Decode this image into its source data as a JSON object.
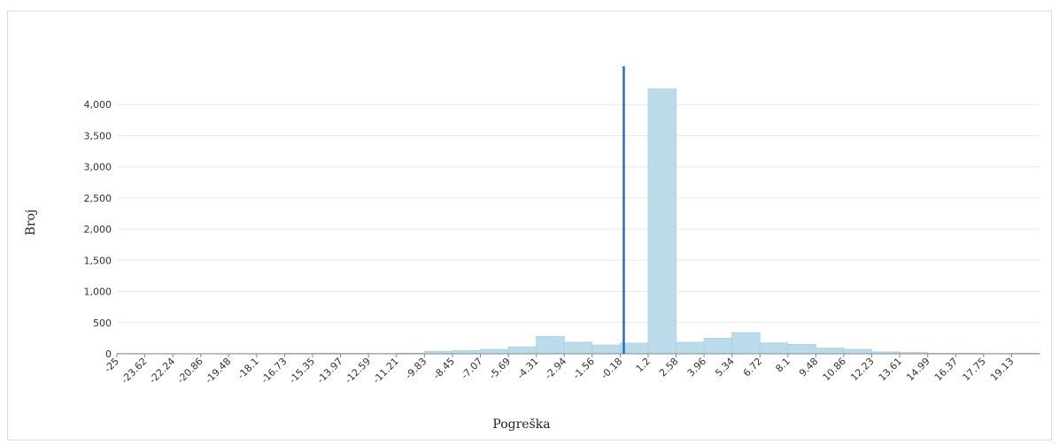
{
  "chart_data": {
    "type": "bar",
    "xlabel": "Pogreška",
    "ylabel": "Broj",
    "ylim": [
      0,
      4500
    ],
    "grid": true,
    "y_ticks": [
      0,
      500,
      1000,
      1500,
      2000,
      2500,
      3000,
      3500,
      4000
    ],
    "y_tick_labels": [
      "0",
      "500",
      "1,000",
      "1,500",
      "2,000",
      "2,500",
      "3,000",
      "3,500",
      "4,000"
    ],
    "x_tick_labels": [
      "-25",
      "-23.62",
      "-22.24",
      "-20.86",
      "-19.48",
      "-18.1",
      "-16.73",
      "-15.35",
      "-13.97",
      "-12.59",
      "-11.21",
      "-9.83",
      "-8.45",
      "-7.07",
      "-5.69",
      "-4.31",
      "-2.94",
      "-1.56",
      "-0.18",
      "1.2",
      "2.58",
      "3.96",
      "5.34",
      "6.72",
      "8.1",
      "9.48",
      "10.86",
      "12.23",
      "13.61",
      "14.99",
      "16.37",
      "17.75",
      "19.13"
    ],
    "bin_edges": [
      -25,
      -23.62,
      -22.24,
      -20.86,
      -19.48,
      -18.1,
      -16.73,
      -15.35,
      -13.97,
      -12.59,
      -11.21,
      -9.83,
      -8.45,
      -7.07,
      -5.69,
      -4.31,
      -2.94,
      -1.56,
      -0.18,
      1.2,
      2.58,
      3.96,
      5.34,
      6.72,
      8.1,
      9.48,
      10.86,
      12.23,
      13.61,
      14.99,
      16.37,
      17.75,
      19.13,
      20.51
    ],
    "values": [
      5,
      3,
      2,
      3,
      5,
      5,
      8,
      10,
      8,
      5,
      10,
      40,
      50,
      70,
      110,
      280,
      185,
      140,
      170,
      4250,
      185,
      250,
      340,
      175,
      150,
      90,
      70,
      30,
      20,
      8,
      10,
      5,
      10
    ],
    "marker_line_x": 0,
    "colors": {
      "bar_fill": "#bcdbea",
      "bar_stroke": "#a9cfe2",
      "marker_line": "#1a6fdc",
      "grid": "#e9e9e9",
      "axis": "#888888"
    }
  }
}
